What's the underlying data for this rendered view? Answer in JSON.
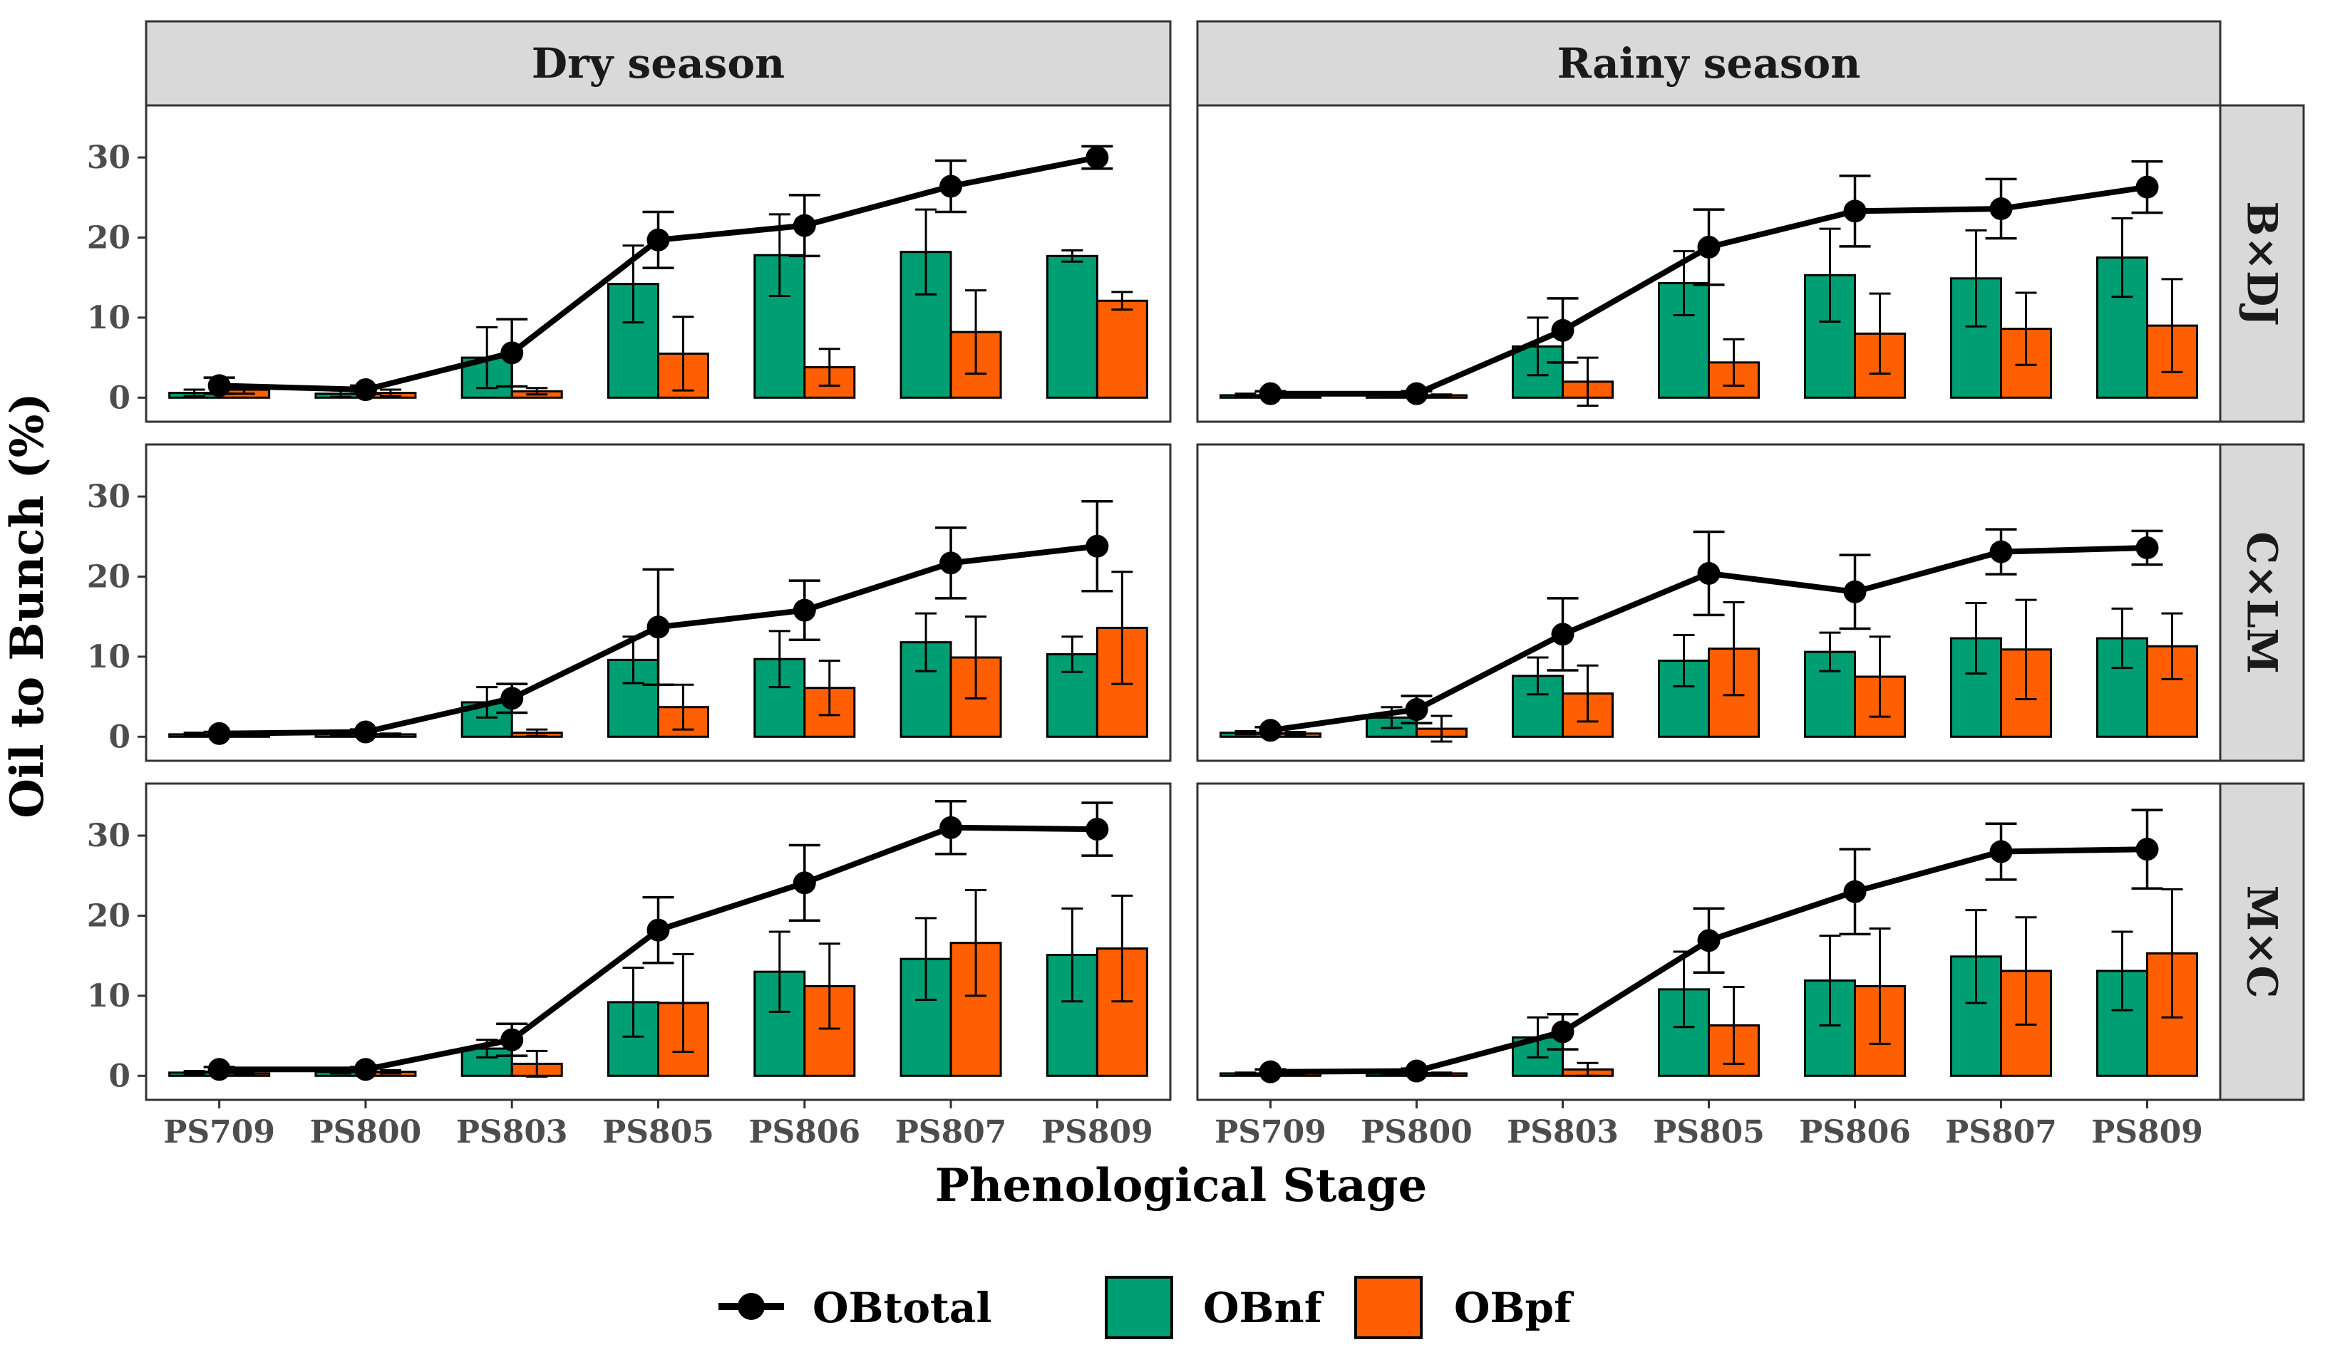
{
  "chart_data": {
    "type": "bar",
    "xlabel": "Phenological Stage",
    "ylabel": "Oil to Bunch (%)",
    "ylim": [
      -3,
      36.5
    ],
    "yticks": [
      0,
      10,
      20,
      30
    ],
    "categories": [
      "PS709",
      "PS800",
      "PS803",
      "PS805",
      "PS806",
      "PS807",
      "PS809"
    ],
    "columns": [
      "Dry season",
      "Rainy season"
    ],
    "rows": [
      "B×DJ",
      "C×LM",
      "M×C"
    ],
    "grid": false,
    "legend": {
      "position": "bottom",
      "items": [
        {
          "key": "OBtotal",
          "label": "OBtotal",
          "kind": "line-point",
          "color": "#000000"
        },
        {
          "key": "OBnf",
          "label": "OBnf",
          "kind": "bar",
          "color": "#009E73"
        },
        {
          "key": "OBpf",
          "label": "OBpf",
          "kind": "bar",
          "color": "#FF5F00"
        }
      ]
    },
    "panels": [
      {
        "row": "B×DJ",
        "column": "Dry season",
        "OBnf": [
          0.6,
          0.5,
          5.0,
          14.2,
          17.8,
          18.2,
          17.7
        ],
        "OBnf_err": [
          0.4,
          0.4,
          3.8,
          4.8,
          5.1,
          5.3,
          0.7
        ],
        "OBpf": [
          1.0,
          0.6,
          0.8,
          5.5,
          3.8,
          8.2,
          12.1
        ],
        "OBpf_err": [
          0.5,
          0.4,
          0.4,
          4.6,
          2.3,
          5.2,
          1.1
        ],
        "OBtotal": [
          1.5,
          1.0,
          5.6,
          19.7,
          21.5,
          26.4,
          30.0
        ],
        "OBtotal_err": [
          1.0,
          0.5,
          4.2,
          3.5,
          3.8,
          3.2,
          1.4
        ]
      },
      {
        "row": "B×DJ",
        "column": "Rainy season",
        "OBnf": [
          0.3,
          0.4,
          6.4,
          14.3,
          15.3,
          14.9,
          17.5
        ],
        "OBnf_err": [
          0.2,
          0.2,
          3.6,
          4.0,
          5.8,
          6.0,
          4.9
        ],
        "OBpf": [
          0.2,
          0.3,
          2.0,
          4.4,
          8.0,
          8.6,
          9.0
        ],
        "OBpf_err": [
          0.1,
          0.1,
          3.0,
          2.9,
          5.0,
          4.5,
          5.8
        ],
        "OBtotal": [
          0.5,
          0.5,
          8.4,
          18.8,
          23.3,
          23.6,
          26.3
        ],
        "OBtotal_err": [
          0.3,
          0.3,
          4.0,
          4.7,
          4.4,
          3.7,
          3.2
        ]
      },
      {
        "row": "C×LM",
        "column": "Dry season",
        "OBnf": [
          0.3,
          0.4,
          4.3,
          9.6,
          9.7,
          11.8,
          10.3
        ],
        "OBnf_err": [
          0.2,
          0.2,
          1.9,
          2.9,
          3.5,
          3.6,
          2.2
        ],
        "OBpf": [
          0.2,
          0.3,
          0.5,
          3.7,
          6.1,
          9.9,
          13.6
        ],
        "OBpf_err": [
          0.1,
          0.1,
          0.4,
          2.8,
          3.4,
          5.1,
          7.0
        ],
        "OBtotal": [
          0.4,
          0.6,
          4.8,
          13.7,
          15.8,
          21.7,
          23.8
        ],
        "OBtotal_err": [
          0.2,
          0.3,
          1.8,
          7.2,
          3.7,
          4.4,
          5.6
        ]
      },
      {
        "row": "C×LM",
        "column": "Rainy season",
        "OBnf": [
          0.5,
          2.4,
          7.6,
          9.5,
          10.6,
          12.3,
          12.3
        ],
        "OBnf_err": [
          0.2,
          1.3,
          2.3,
          3.2,
          2.4,
          4.4,
          3.7
        ],
        "OBpf": [
          0.4,
          1.0,
          5.4,
          11.0,
          7.5,
          10.9,
          11.3
        ],
        "OBpf_err": [
          0.2,
          1.6,
          3.5,
          5.8,
          5.0,
          6.2,
          4.1
        ],
        "OBtotal": [
          0.8,
          3.4,
          12.8,
          20.4,
          18.1,
          23.1,
          23.6
        ],
        "OBtotal_err": [
          0.4,
          1.7,
          4.5,
          5.2,
          4.6,
          2.8,
          2.1
        ]
      },
      {
        "row": "M×C",
        "column": "Dry season",
        "OBnf": [
          0.4,
          0.5,
          3.4,
          9.2,
          13.0,
          14.6,
          15.1
        ],
        "OBnf_err": [
          0.2,
          0.2,
          1.1,
          4.3,
          5.0,
          5.1,
          5.8
        ],
        "OBpf": [
          0.3,
          0.5,
          1.5,
          9.1,
          11.2,
          16.6,
          15.9
        ],
        "OBpf_err": [
          0.1,
          0.2,
          1.6,
          6.1,
          5.3,
          6.6,
          6.6
        ],
        "OBtotal": [
          0.8,
          0.8,
          4.5,
          18.2,
          24.1,
          31.0,
          30.8
        ],
        "OBtotal_err": [
          0.3,
          0.3,
          2.0,
          4.1,
          4.7,
          3.3,
          3.3
        ]
      },
      {
        "row": "M×C",
        "column": "Rainy season",
        "OBnf": [
          0.3,
          0.3,
          4.8,
          10.8,
          11.9,
          14.9,
          13.1
        ],
        "OBnf_err": [
          0.1,
          0.1,
          2.5,
          4.7,
          5.6,
          5.8,
          4.9
        ],
        "OBpf": [
          0.3,
          0.3,
          0.8,
          6.3,
          11.2,
          13.1,
          15.3
        ],
        "OBpf_err": [
          0.1,
          0.1,
          0.8,
          4.8,
          7.2,
          6.7,
          8.0
        ],
        "OBtotal": [
          0.5,
          0.6,
          5.5,
          16.9,
          23.0,
          28.0,
          28.3
        ],
        "OBtotal_err": [
          0.3,
          0.3,
          2.2,
          4.0,
          5.3,
          3.5,
          4.9
        ]
      }
    ]
  }
}
